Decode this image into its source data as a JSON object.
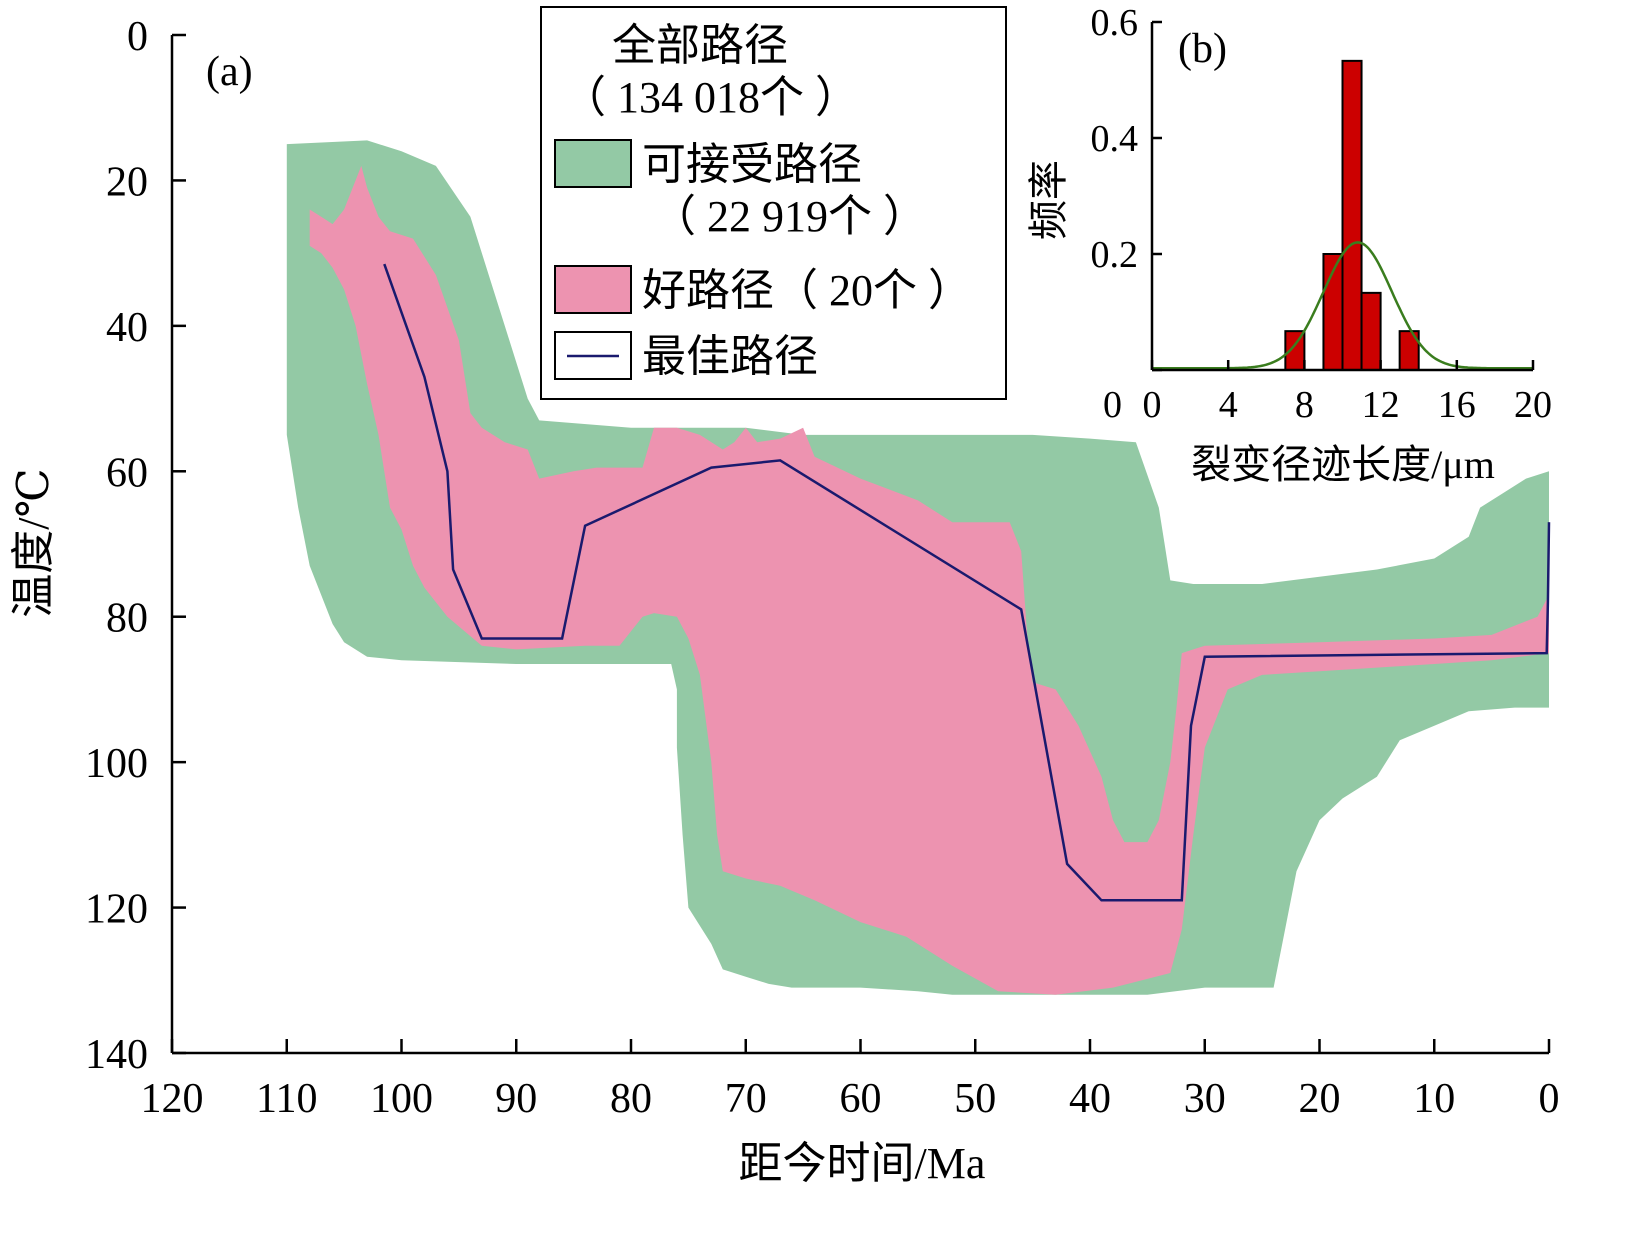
{
  "chart_data": [
    {
      "type": "area",
      "panel_label": "(a)",
      "xlabel": "距今时间/Ma",
      "ylabel": "温度/℃",
      "xlim": [
        120,
        0
      ],
      "ylim": [
        0,
        140
      ],
      "y_inverted": true,
      "x_ticks": [
        120,
        110,
        100,
        90,
        80,
        70,
        60,
        50,
        40,
        30,
        20,
        10,
        0
      ],
      "y_ticks": [
        0,
        20,
        40,
        60,
        80,
        100,
        120,
        140
      ],
      "x_tick_labels": [
        "120",
        "110",
        "100",
        "90",
        "80",
        "70",
        "60",
        "50",
        "40",
        "30",
        "20",
        "10",
        "0"
      ],
      "y_tick_labels": [
        "0",
        "20",
        "40",
        "60",
        "80",
        "100",
        "120",
        "140"
      ],
      "legend": {
        "position": "top-center",
        "title_line1": "全部路径",
        "title_line2": "（ 134 018个 ）",
        "items": [
          {
            "key": "acceptable",
            "label_line1": "可接受路径",
            "label_line2": "（ 22 919个 ）",
            "color": "#93C9A5"
          },
          {
            "key": "good",
            "label_line1": "好路径（ 20个 ）",
            "color": "#ED93B0"
          },
          {
            "key": "best",
            "label_line1": "最佳路径",
            "color": "#1A1A6E"
          }
        ]
      },
      "series": [
        {
          "name": "可接受路径",
          "color": "#93C9A5",
          "kind": "envelope",
          "upper": [
            [
              110,
              15
            ],
            [
              103,
              14.5
            ],
            [
              100,
              16
            ],
            [
              97,
              18
            ],
            [
              94,
              25
            ],
            [
              92,
              35
            ],
            [
              91,
              40
            ],
            [
              89,
              50
            ],
            [
              88,
              53
            ],
            [
              80,
              54
            ],
            [
              75,
              54
            ],
            [
              70,
              54
            ],
            [
              65,
              55
            ],
            [
              55,
              55
            ],
            [
              45,
              55
            ],
            [
              40,
              55.5
            ],
            [
              36,
              56
            ],
            [
              34,
              65
            ],
            [
              33.5,
              70
            ],
            [
              33,
              75
            ],
            [
              31,
              75.5
            ],
            [
              25,
              75.5
            ],
            [
              20,
              74.5
            ],
            [
              15,
              73.5
            ],
            [
              10,
              72
            ],
            [
              7,
              69
            ],
            [
              6,
              65
            ],
            [
              4,
              63
            ],
            [
              2,
              61
            ],
            [
              0,
              60
            ]
          ],
          "lower": [
            [
              0,
              92.5
            ],
            [
              3,
              92.5
            ],
            [
              7,
              93
            ],
            [
              10,
              95
            ],
            [
              13,
              97
            ],
            [
              15,
              102
            ],
            [
              18,
              105
            ],
            [
              20,
              108
            ],
            [
              22,
              115
            ],
            [
              23,
              123
            ],
            [
              24,
              131
            ],
            [
              27,
              131
            ],
            [
              30,
              131
            ],
            [
              35,
              132
            ],
            [
              45,
              132
            ],
            [
              52,
              132
            ],
            [
              55,
              131.5
            ],
            [
              60,
              131
            ],
            [
              66,
              131
            ],
            [
              68,
              130.5
            ],
            [
              70,
              129.5
            ],
            [
              72,
              128.5
            ],
            [
              73,
              125
            ],
            [
              75,
              120
            ],
            [
              75.5,
              110
            ],
            [
              76,
              98
            ],
            [
              76,
              90
            ],
            [
              76.5,
              86.5
            ],
            [
              80,
              86.5
            ],
            [
              90,
              86.5
            ],
            [
              100,
              86
            ],
            [
              103,
              85.5
            ],
            [
              105,
              83.5
            ],
            [
              106,
              81
            ],
            [
              108,
              73
            ],
            [
              109,
              65
            ],
            [
              110,
              55
            ],
            [
              110,
              30
            ]
          ]
        },
        {
          "name": "好路径（ 20个 ）",
          "color": "#ED93B0",
          "kind": "envelope",
          "upper": [
            [
              108,
              24
            ],
            [
              107,
              25
            ],
            [
              106,
              26
            ],
            [
              105,
              24
            ],
            [
              104,
              20
            ],
            [
              103.5,
              18
            ],
            [
              103,
              21
            ],
            [
              102,
              25
            ],
            [
              101,
              27
            ],
            [
              99,
              28
            ],
            [
              97,
              33
            ],
            [
              95,
              42
            ],
            [
              94,
              52
            ],
            [
              93,
              54
            ],
            [
              91,
              56
            ],
            [
              89,
              57
            ],
            [
              88,
              61
            ],
            [
              85,
              60
            ],
            [
              83,
              59.5
            ],
            [
              79,
              59.5
            ],
            [
              78,
              54
            ],
            [
              76,
              54
            ],
            [
              74,
              55
            ],
            [
              72,
              57
            ],
            [
              71,
              56
            ],
            [
              70,
              54
            ],
            [
              69,
              56
            ],
            [
              67,
              55.5
            ],
            [
              65,
              54
            ],
            [
              64,
              58
            ],
            [
              60,
              61
            ],
            [
              55,
              64
            ],
            [
              52,
              67
            ],
            [
              47,
              67
            ],
            [
              46,
              71
            ],
            [
              45.5,
              82
            ],
            [
              45,
              89
            ],
            [
              43,
              90
            ],
            [
              41,
              95
            ],
            [
              39,
              102
            ],
            [
              38,
              108
            ],
            [
              37,
              111
            ],
            [
              35,
              111
            ],
            [
              34,
              108
            ],
            [
              33,
              100
            ],
            [
              32.5,
              93
            ],
            [
              32,
              85
            ],
            [
              31,
              84.5
            ],
            [
              30,
              84
            ],
            [
              20,
              83.5
            ],
            [
              10,
              83
            ],
            [
              5,
              82.5
            ],
            [
              1,
              80
            ],
            [
              0,
              77
            ]
          ],
          "lower": [
            [
              0,
              85
            ],
            [
              5,
              86
            ],
            [
              10,
              86.5
            ],
            [
              15,
              87
            ],
            [
              20,
              87.5
            ],
            [
              25,
              88
            ],
            [
              28,
              90
            ],
            [
              30,
              98
            ],
            [
              31,
              110
            ],
            [
              32,
              123
            ],
            [
              33,
              129
            ],
            [
              38,
              131
            ],
            [
              43,
              132
            ],
            [
              48,
              131.5
            ],
            [
              52,
              128
            ],
            [
              56,
              124
            ],
            [
              60,
              122
            ],
            [
              64,
              119
            ],
            [
              67,
              117
            ],
            [
              70,
              116
            ],
            [
              72,
              115
            ],
            [
              72.5,
              110
            ],
            [
              73,
              100
            ],
            [
              74,
              88
            ],
            [
              75,
              83
            ],
            [
              76,
              80
            ],
            [
              78,
              79.5
            ],
            [
              79,
              80
            ],
            [
              81,
              84
            ],
            [
              84,
              84
            ],
            [
              90,
              84.5
            ],
            [
              93,
              84
            ],
            [
              96,
              80
            ],
            [
              98,
              76
            ],
            [
              99,
              73
            ],
            [
              100,
              68
            ],
            [
              101,
              65
            ],
            [
              102,
              55
            ],
            [
              103,
              48
            ],
            [
              104,
              40
            ],
            [
              105,
              35
            ],
            [
              106,
              32
            ],
            [
              107,
              30
            ],
            [
              108,
              29
            ]
          ]
        },
        {
          "name": "最佳路径",
          "color": "#1A1A6E",
          "kind": "line",
          "points": [
            [
              101.5,
              31.5
            ],
            [
              98,
              47
            ],
            [
              96,
              60
            ],
            [
              95.5,
              73.5
            ],
            [
              93,
              83
            ],
            [
              86,
              83
            ],
            [
              84,
              67.5
            ],
            [
              73,
              59.5
            ],
            [
              67,
              58.5
            ],
            [
              46,
              79
            ],
            [
              42,
              114
            ],
            [
              39,
              119
            ],
            [
              32,
              119
            ],
            [
              31.2,
              95
            ],
            [
              30,
              85.5
            ],
            [
              0.2,
              85
            ],
            [
              0.1,
              78
            ],
            [
              0,
              67
            ]
          ]
        }
      ]
    },
    {
      "type": "bar",
      "panel_label": "(b)",
      "xlabel": "裂变径迹长度/μm",
      "ylabel": "频率",
      "xlim": [
        0,
        20
      ],
      "ylim": [
        0,
        0.6
      ],
      "x_ticks": [
        0,
        4,
        8,
        12,
        16,
        20
      ],
      "y_ticks": [
        0,
        0.2,
        0.4,
        0.6
      ],
      "x_tick_labels": [
        "0",
        "4",
        "8",
        "12",
        "16",
        "20"
      ],
      "y_tick_labels": [
        "0",
        "0.2",
        "0.4",
        "0.6"
      ],
      "bin_width": 1,
      "bars": [
        {
          "x": 7,
          "value": 0.067
        },
        {
          "x": 9,
          "value": 0.2
        },
        {
          "x": 10,
          "value": 0.533
        },
        {
          "x": 11,
          "value": 0.133
        },
        {
          "x": 13,
          "value": 0.067
        }
      ],
      "bar_color": "#CC0000",
      "fit_curve": {
        "type": "gaussian",
        "mean": 10.8,
        "sigma": 1.8,
        "peak": 0.22,
        "baseline": 0.003,
        "color": "#3A7D1E"
      }
    }
  ]
}
